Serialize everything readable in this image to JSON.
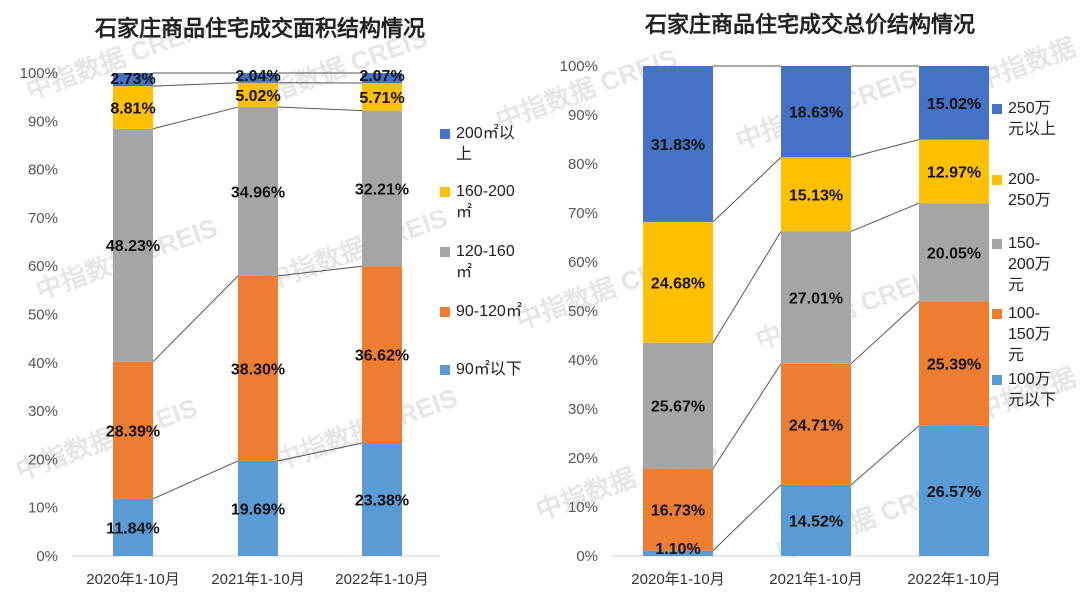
{
  "watermark": "中指数据 CREIS",
  "chart_data": [
    {
      "type": "bar",
      "stacked": true,
      "title": "石家庄商品住宅成交面积结构情况",
      "categories": [
        "2020年1-10月",
        "2021年1-10月",
        "2022年1-10月"
      ],
      "yticks": [
        "0%",
        "10%",
        "20%",
        "30%",
        "40%",
        "50%",
        "60%",
        "70%",
        "80%",
        "90%",
        "100%"
      ],
      "ylim": [
        0,
        100
      ],
      "legend_position": "right",
      "series": [
        {
          "name": "90㎡以下",
          "name_lines": [
            "90㎡以下"
          ],
          "color": "#5b9bd5",
          "values": [
            11.84,
            19.69,
            23.38
          ],
          "labels": [
            "11.84%",
            "19.69%",
            "23.38%"
          ]
        },
        {
          "name": "90-120㎡",
          "name_lines": [
            "90-120㎡"
          ],
          "color": "#ed7d31",
          "values": [
            28.39,
            38.3,
            36.62
          ],
          "labels": [
            "28.39%",
            "38.30%",
            "36.62%"
          ]
        },
        {
          "name": "120-160㎡",
          "name_lines": [
            "120-160",
            "㎡"
          ],
          "color": "#a5a5a5",
          "values": [
            48.23,
            34.96,
            32.21
          ],
          "labels": [
            "48.23%",
            "34.96%",
            "32.21%"
          ]
        },
        {
          "name": "160-200㎡",
          "name_lines": [
            "160-200",
            "㎡"
          ],
          "color": "#ffc000",
          "values": [
            8.81,
            5.02,
            5.71
          ],
          "labels": [
            "8.81%",
            "5.02%",
            "5.71%"
          ]
        },
        {
          "name": "200㎡以上",
          "name_lines": [
            "200㎡以",
            "上"
          ],
          "color": "#4472c4",
          "values": [
            2.73,
            2.04,
            2.07
          ],
          "labels": [
            "2.73%",
            "2.04%",
            "2.07%"
          ]
        }
      ]
    },
    {
      "type": "bar",
      "stacked": true,
      "title": "石家庄商品住宅成交总价结构情况",
      "categories": [
        "2020年1-10月",
        "2021年1-10月",
        "2022年1-10月"
      ],
      "yticks": [
        "0%",
        "10%",
        "20%",
        "30%",
        "40%",
        "50%",
        "60%",
        "70%",
        "80%",
        "90%",
        "100%"
      ],
      "ylim": [
        0,
        100
      ],
      "legend_position": "right",
      "series": [
        {
          "name": "100万元以下",
          "name_lines": [
            "100万",
            "元以下"
          ],
          "color": "#5b9bd5",
          "values": [
            1.1,
            14.52,
            26.57
          ],
          "labels": [
            "1.10%",
            "14.52%",
            "26.57%"
          ]
        },
        {
          "name": "100-150万元",
          "name_lines": [
            "100-",
            "150万",
            "元"
          ],
          "color": "#ed7d31",
          "values": [
            16.73,
            24.71,
            25.39
          ],
          "labels": [
            "16.73%",
            "24.71%",
            "25.39%"
          ]
        },
        {
          "name": "150-200万元",
          "name_lines": [
            "150-",
            "200万",
            "元"
          ],
          "color": "#a5a5a5",
          "values": [
            25.67,
            27.01,
            20.05
          ],
          "labels": [
            "25.67%",
            "27.01%",
            "20.05%"
          ]
        },
        {
          "name": "200-250万",
          "name_lines": [
            "200-",
            "250万"
          ],
          "color": "#ffc000",
          "values": [
            24.68,
            15.13,
            12.97
          ],
          "labels": [
            "24.68%",
            "15.13%",
            "12.97%"
          ]
        },
        {
          "name": "250万元以上",
          "name_lines": [
            "250万",
            "元以上"
          ],
          "color": "#4472c4",
          "values": [
            31.83,
            18.63,
            15.02
          ],
          "labels": [
            "31.83%",
            "18.63%",
            "15.02%"
          ]
        }
      ]
    }
  ]
}
